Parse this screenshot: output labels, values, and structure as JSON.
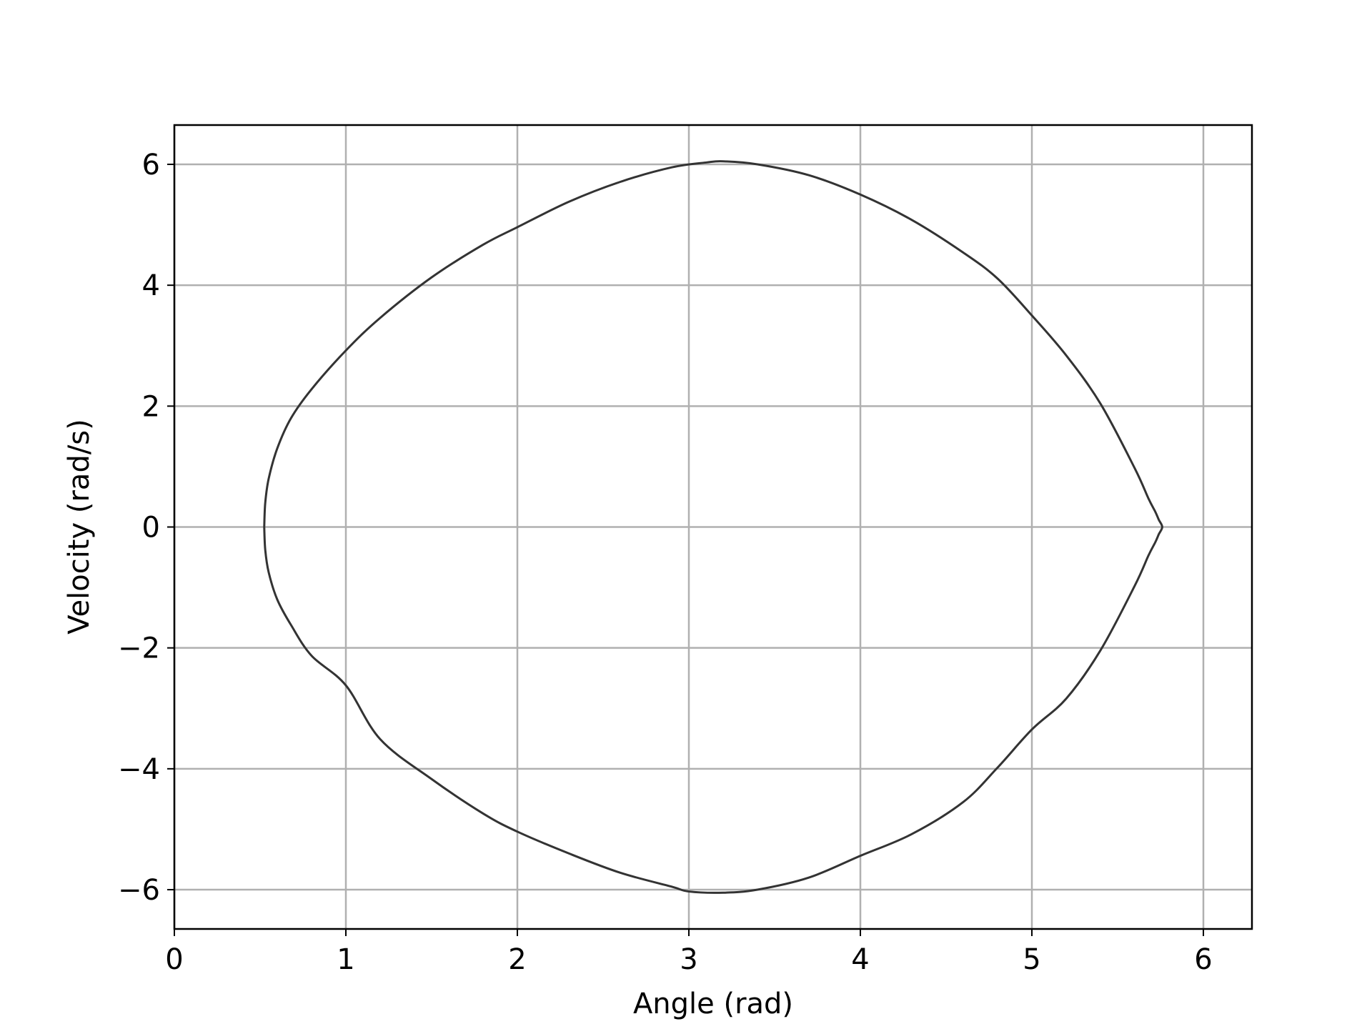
{
  "chart_data": {
    "type": "line",
    "title": "",
    "xlabel": "Angle (rad)",
    "ylabel": "Velocity (rad/s)",
    "xlim": [
      0,
      6.2832
    ],
    "ylim": [
      -6.65,
      6.65
    ],
    "grid": true,
    "legend": "none",
    "x_ticks": [
      0,
      1,
      2,
      3,
      4,
      5,
      6
    ],
    "y_ticks": [
      -6,
      -4,
      -2,
      0,
      2,
      4,
      6
    ],
    "x_tick_labels": [
      "0",
      "1",
      "2",
      "3",
      "4",
      "5",
      "6"
    ],
    "y_tick_labels": [
      "−6",
      "−4",
      "−2",
      "0",
      "2",
      "4",
      "6"
    ],
    "line_color": "#333333",
    "series": [
      {
        "x": [
          0.524,
          0.53,
          0.55,
          0.6,
          0.68,
          0.8,
          1.0,
          1.2,
          1.5,
          1.8,
          2.0,
          2.3,
          2.6,
          2.9,
          3.1,
          3.2,
          3.4,
          3.7,
          4.0,
          4.3,
          4.6,
          4.8,
          5.0,
          5.2,
          5.4,
          5.6,
          5.68,
          5.72,
          5.74,
          5.76,
          5.74,
          5.72,
          5.68,
          5.6,
          5.4,
          5.2,
          5.0,
          4.8,
          4.6,
          4.3,
          4.0,
          3.7,
          3.4,
          3.2,
          3.0,
          2.9,
          2.6,
          2.3,
          2.0,
          1.8,
          1.5,
          1.2,
          1.0,
          0.8,
          0.68,
          0.6,
          0.55,
          0.53,
          0.524
        ],
        "y": [
          0.0,
          0.4,
          0.8,
          1.3,
          1.8,
          2.28,
          2.92,
          3.46,
          4.13,
          4.67,
          4.96,
          5.38,
          5.71,
          5.95,
          6.03,
          6.05,
          6.0,
          5.82,
          5.5,
          5.08,
          4.54,
          4.11,
          3.5,
          2.84,
          2.04,
          0.97,
          0.47,
          0.25,
          0.12,
          0.0,
          -0.12,
          -0.25,
          -0.47,
          -0.97,
          -2.04,
          -2.84,
          -3.35,
          -3.98,
          -4.55,
          -5.08,
          -5.44,
          -5.8,
          -6.0,
          -6.05,
          -6.03,
          -5.95,
          -5.72,
          -5.4,
          -5.04,
          -4.74,
          -4.17,
          -3.51,
          -2.62,
          -2.13,
          -1.62,
          -1.2,
          -0.75,
          -0.38,
          0.0
        ]
      }
    ]
  }
}
